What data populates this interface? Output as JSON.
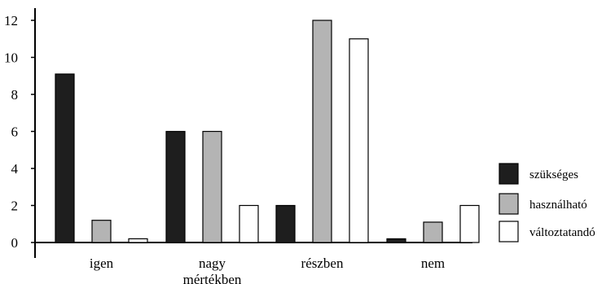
{
  "chart_data": {
    "type": "bar",
    "categories": [
      [
        "igen"
      ],
      [
        "nagy",
        "mértékben"
      ],
      [
        "részben"
      ],
      [
        "nem"
      ]
    ],
    "series": [
      {
        "name": "szükséges",
        "color": "#1e1e1e",
        "values": [
          9.1,
          6.0,
          2.0,
          0.2
        ]
      },
      {
        "name": "használható",
        "color": "#b4b4b4",
        "values": [
          1.2,
          6.0,
          12.0,
          1.1
        ]
      },
      {
        "name": "változtatandó",
        "color": "#ffffff",
        "values": [
          0.2,
          2.0,
          11.0,
          2.0
        ]
      }
    ],
    "ylim": [
      0,
      12
    ],
    "yticks": [
      0,
      2,
      4,
      6,
      8,
      10,
      12
    ],
    "grid": false,
    "legend": "right"
  }
}
